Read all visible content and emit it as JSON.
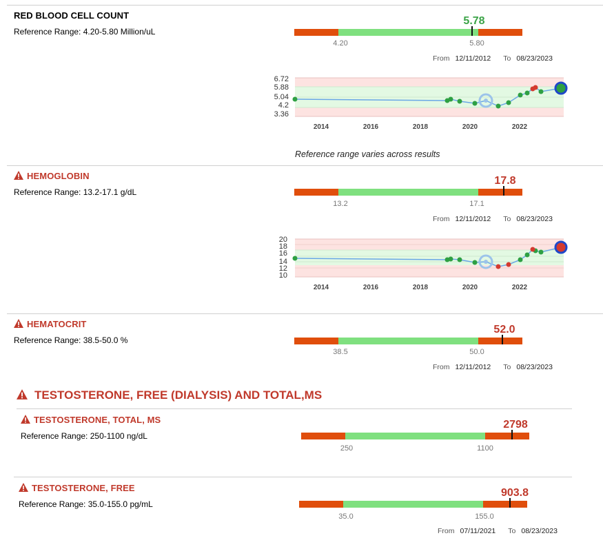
{
  "rbc": {
    "title": "RED BLOOD CELL COUNT",
    "ref": "Reference Range: 4.20-5.80 Million/uL",
    "value": "5.78",
    "low": "4.20",
    "high": "5.80",
    "from_label": "From",
    "from_date": "12/11/2012",
    "to_label": "To",
    "to_date": "08/23/2023",
    "chart_y_ticks": [
      "6.72",
      "5.88",
      "5.04",
      "4.2",
      "3.36"
    ],
    "chart_x_ticks": [
      "2014",
      "2016",
      "2018",
      "2020",
      "2022"
    ],
    "note": "Reference range varies across results"
  },
  "hgb": {
    "title": "HEMOGLOBIN",
    "ref": "Reference Range: 13.2-17.1 g/dL",
    "value": "17.8",
    "low": "13.2",
    "high": "17.1",
    "from_label": "From",
    "from_date": "12/11/2012",
    "to_label": "To",
    "to_date": "08/23/2023",
    "chart_y_ticks": [
      "20",
      "18",
      "16",
      "14",
      "12",
      "10"
    ],
    "chart_x_ticks": [
      "2014",
      "2016",
      "2018",
      "2020",
      "2022"
    ]
  },
  "hct": {
    "title": "HEMATOCRIT",
    "ref": "Reference Range: 38.5-50.0 %",
    "value": "52.0",
    "low": "38.5",
    "high": "50.0",
    "from_label": "From",
    "from_date": "12/11/2012",
    "to_label": "To",
    "to_date": "08/23/2023"
  },
  "testo_group": {
    "title": "TESTOSTERONE, FREE (DIALYSIS) AND TOTAL,MS"
  },
  "testo_total": {
    "title": "TESTOSTERONE, TOTAL, MS",
    "ref": "Reference Range: 250-1100 ng/dL",
    "value": "2798",
    "low": "250",
    "high": "1100"
  },
  "testo_free": {
    "title": "TESTOSTERONE, FREE",
    "ref": "Reference Range: 35.0-155.0 pg/mL",
    "value": "903.8",
    "low": "35.0",
    "high": "155.0",
    "from_label": "From",
    "from_date": "07/11/2021",
    "to_label": "To",
    "to_date": "08/23/2023"
  },
  "colors": {
    "out_of_range": "#e04e0c",
    "in_range": "#7fe07f",
    "warn_text": "#c0392b",
    "ok_text": "#3aa346",
    "line": "#6aa7e6",
    "dot_green": "#2ea043",
    "dot_red": "#d43a2f"
  }
}
